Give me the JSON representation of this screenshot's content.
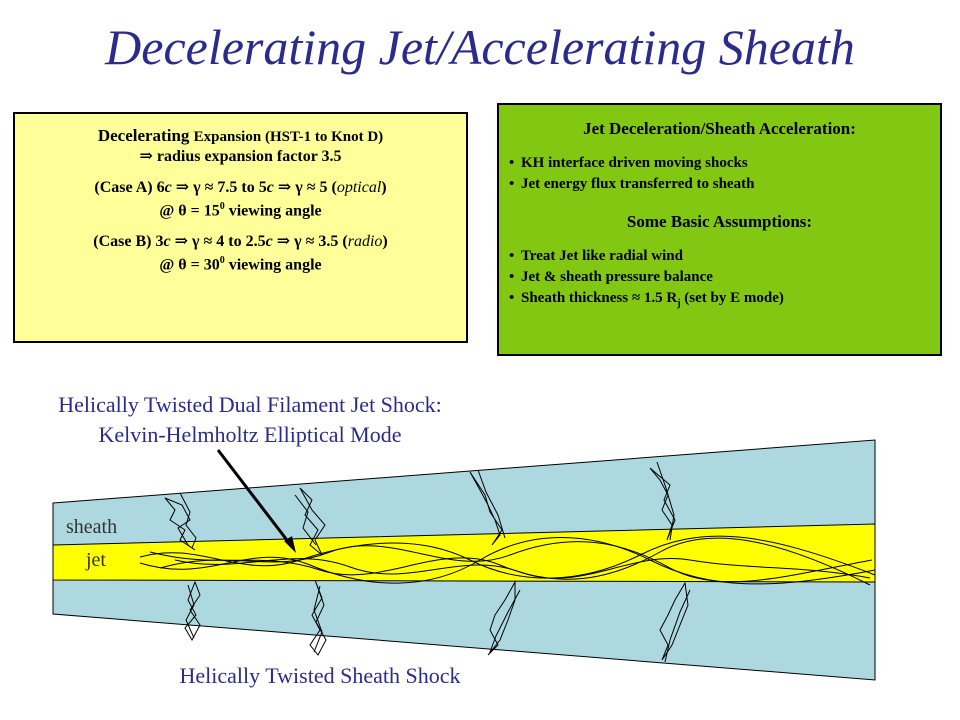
{
  "title": "Decelerating Jet/Accelerating Sheath",
  "left_box": {
    "line1_a": "Decelerating",
    "line1_b": "Expansion (HST-1 to Knot D)",
    "line2": "⇒ radius expansion factor 3.5",
    "caseA_1": "(Case A) 6",
    "caseA_c1": "c",
    "caseA_2": " ⇒ γ ≈ 7.5 to 5",
    "caseA_c2": "c",
    "caseA_3": " ⇒ γ ≈ 5 (",
    "caseA_opt": "optical",
    "caseA_4": ")",
    "caseA_angle_a": "@ θ = 15",
    "caseA_angle_sup": "0",
    "caseA_angle_b": " viewing angle",
    "caseB_1": "(Case B) 3",
    "caseB_c1": "c",
    "caseB_2": " ⇒ γ  ≈ 4 to 2.5",
    "caseB_c2": "c",
    "caseB_3": " ⇒ γ ≈ 3.5  (",
    "caseB_rad": "radio",
    "caseB_4": ")",
    "caseB_angle_a": "@ θ = 30",
    "caseB_angle_sup": "0",
    "caseB_angle_b": " viewing angle"
  },
  "right_box": {
    "heading1": "Jet Deceleration/Sheath Acceleration:",
    "bullets1": [
      "KH interface driven moving shocks",
      "Jet energy flux transferred to sheath"
    ],
    "heading2": "Some Basic Assumptions:",
    "bullets2": [
      "Treat Jet like radial wind",
      "Jet & sheath pressure balance"
    ],
    "bullet3_a": "Sheath thickness ≈ 1.5 R",
    "bullet3_sub": "j",
    "bullet3_b": "  (set by E mode)"
  },
  "labels": {
    "dual_line1": "Helically Twisted Dual Filament Jet Shock:",
    "dual_line2": "Kelvin-Helmholtz Elliptical Mode",
    "sheath_shock": "Helically Twisted Sheath Shock",
    "sheath": "sheath",
    "jet": "jet"
  },
  "colors": {
    "title": "#2b2b8c",
    "yellow_box": "#ffff99",
    "green_box": "#82c812",
    "sheath": "#add8e0",
    "jet": "#ffff00"
  }
}
